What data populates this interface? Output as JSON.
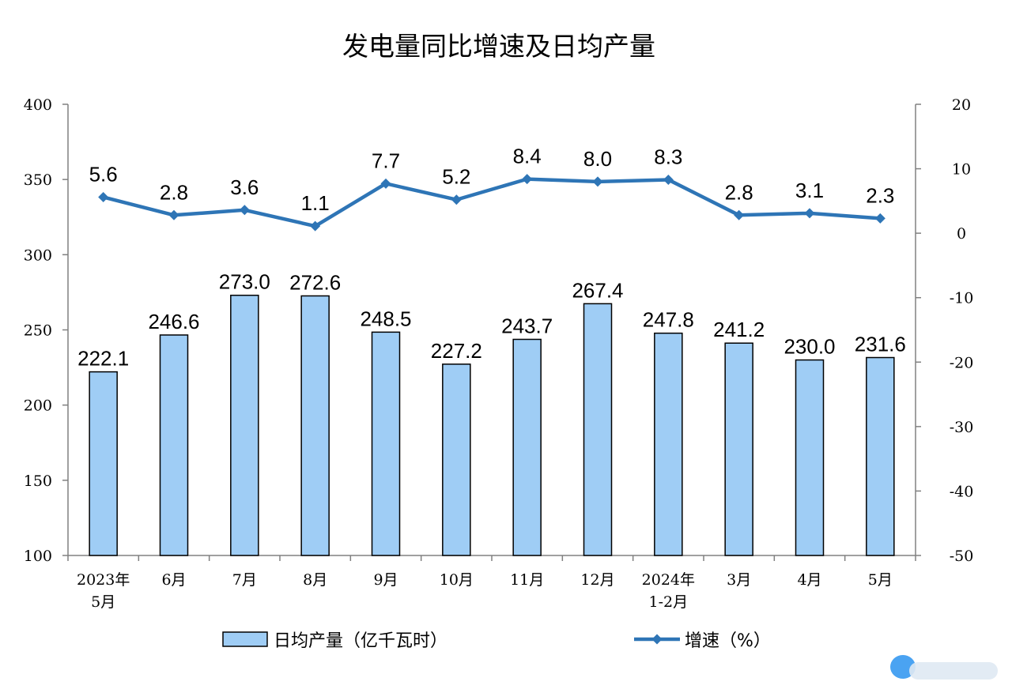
{
  "chart_data": {
    "type": "bar",
    "title": "发电量同比增速及日均产量",
    "categories": [
      [
        "2023年",
        "5月"
      ],
      [
        "6月"
      ],
      [
        "7月"
      ],
      [
        "8月"
      ],
      [
        "9月"
      ],
      [
        "10月"
      ],
      [
        "11月"
      ],
      [
        "12月"
      ],
      [
        "2024年",
        "1-2月"
      ],
      [
        "3月"
      ],
      [
        "4月"
      ],
      [
        "5月"
      ]
    ],
    "series": [
      {
        "name": "日均产量（亿千瓦时）",
        "type": "bar",
        "axis": "left",
        "color": "#9fcdf5",
        "values": [
          222.1,
          246.6,
          273.0,
          272.6,
          248.5,
          227.2,
          243.7,
          267.4,
          247.8,
          241.2,
          230.0,
          231.6
        ],
        "labels": [
          "222.1",
          "246.6",
          "273.0",
          "272.6",
          "248.5",
          "227.2",
          "243.7",
          "267.4",
          "247.8",
          "241.2",
          "230.0",
          "231.6"
        ]
      },
      {
        "name": "增速（%）",
        "type": "line",
        "axis": "right",
        "color": "#2e75b6",
        "values": [
          5.6,
          2.8,
          3.6,
          1.1,
          7.7,
          5.2,
          8.4,
          8.0,
          8.3,
          2.8,
          3.1,
          2.3
        ],
        "labels": [
          "5.6",
          "2.8",
          "3.6",
          "1.1",
          "7.7",
          "5.2",
          "8.4",
          "8.0",
          "8.3",
          "2.8",
          "3.1",
          "2.3"
        ]
      }
    ],
    "y_left": {
      "range": [
        100,
        400
      ],
      "ticks": [
        "100",
        "150",
        "200",
        "250",
        "300",
        "350",
        "400"
      ]
    },
    "y_right": {
      "range": [
        -50,
        20
      ],
      "ticks": [
        "-50",
        "-40",
        "-30",
        "-20",
        "-10",
        "0",
        "10",
        "20"
      ]
    },
    "grid": false,
    "legend_position": "bottom"
  }
}
